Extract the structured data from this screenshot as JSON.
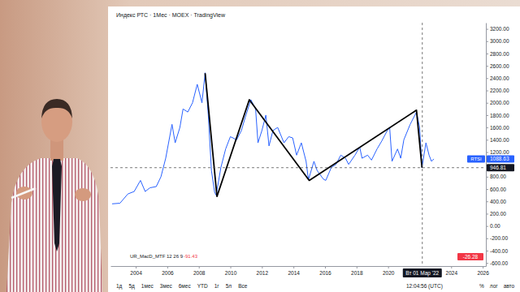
{
  "chart_data": {
    "type": "line",
    "title": "Индекс РТС · 1Мес · MOEX · TradingView",
    "x": [
      2002.5,
      2003.0,
      2003.5,
      2003.9,
      2004.3,
      2004.6,
      2004.9,
      2005.3,
      2005.6,
      2005.9,
      2006.3,
      2006.5,
      2006.8,
      2007.0,
      2007.3,
      2007.6,
      2007.9,
      2008.2,
      2008.4,
      2008.6,
      2008.8,
      2009.0,
      2009.1,
      2009.4,
      2009.7,
      2010.0,
      2010.4,
      2010.7,
      2010.95,
      2011.3,
      2011.6,
      2011.75,
      2012.0,
      2012.25,
      2012.45,
      2012.7,
      2013.0,
      2013.4,
      2013.7,
      2013.95,
      2014.2,
      2014.5,
      2014.8,
      2014.95,
      2015.3,
      2015.5,
      2015.9,
      2016.05,
      2016.4,
      2016.7,
      2017.0,
      2017.3,
      2017.5,
      2017.9,
      2018.2,
      2018.35,
      2018.7,
      2018.95,
      2019.3,
      2019.6,
      2019.95,
      2020.1,
      2020.25,
      2020.6,
      2020.8,
      2021.0,
      2021.4,
      2021.8,
      2022.0,
      2022.15,
      2022.4,
      2022.6,
      2022.75,
      2022.9
    ],
    "series": [
      {
        "color": "#2962ff",
        "values": [
          360,
          370,
          520,
          560,
          740,
          560,
          620,
          640,
          800,
          1100,
          1650,
          1350,
          1600,
          1900,
          1850,
          2000,
          2300,
          2000,
          2487,
          1800,
          900,
          550,
          500,
          950,
          1250,
          1450,
          1400,
          1550,
          1770,
          2050,
          1900,
          1350,
          1550,
          1800,
          1300,
          1550,
          1600,
          1350,
          1450,
          1430,
          1150,
          1350,
          1050,
          750,
          1050,
          900,
          760,
          740,
          950,
          1000,
          1150,
          1100,
          1000,
          1150,
          1280,
          1100,
          1150,
          1070,
          1250,
          1380,
          1550,
          1600,
          1050,
          1250,
          1100,
          1400,
          1650,
          1850,
          1600,
          950,
          1350,
          1150,
          1050,
          1088.63
        ]
      },
      {
        "color": "#000000",
        "x": [
          2008.4,
          2009.15,
          2011.2,
          2015.0,
          2021.8,
          2022.15
        ],
        "values": [
          2480,
          480,
          2050,
          740,
          1880,
          946.81
        ]
      }
    ],
    "xlim": [
      2002.4,
      2026.2
    ],
    "xticks": [
      2004,
      2006,
      2008,
      2010,
      2012,
      2014,
      2016,
      2018,
      2020,
      2024,
      2026
    ],
    "ylim": [
      -650,
      3300
    ],
    "yticks": [
      {
        "value": -600,
        "label": "-600.00"
      },
      {
        "value": -400,
        "label": "-400.00"
      },
      {
        "value": -200,
        "label": "-200.00"
      },
      {
        "value": 0,
        "label": "0.00"
      },
      {
        "value": 200,
        "label": "200.00"
      },
      {
        "value": 400,
        "label": "400.00"
      },
      {
        "value": 600,
        "label": "600.00"
      },
      {
        "value": 800,
        "label": "800.00"
      },
      {
        "value": 1200,
        "label": "1200.00"
      },
      {
        "value": 1400,
        "label": "1400.00"
      },
      {
        "value": 1600,
        "label": "1600.00"
      },
      {
        "value": 1800,
        "label": "1800.00"
      },
      {
        "value": 2000,
        "label": "2000.00"
      },
      {
        "value": 2200,
        "label": "2200.00"
      },
      {
        "value": 2400,
        "label": "2400.00"
      },
      {
        "value": 2600,
        "label": "2600.00"
      },
      {
        "value": 2800,
        "label": "2800.00"
      },
      {
        "value": 3000,
        "label": "3000.00"
      },
      {
        "value": 3200,
        "label": "3200.00"
      }
    ],
    "grid": false,
    "crosshair": {
      "x": 2022.17,
      "x_label": "Вт 01 Мар '22",
      "y": 946.81
    },
    "last_price": {
      "name": "RTSI",
      "value": 1088.63
    },
    "indicator": {
      "name": "UR_MacD_MTF 12 26 9",
      "value": -91.43,
      "last": -26.28
    }
  },
  "toolbar": {
    "items": [
      "1д",
      "5д",
      "1мес",
      "3мес",
      "6мес",
      "YTD",
      "1г",
      "5л",
      "Все"
    ],
    "time": "12:04:56 (UTC)",
    "right": [
      "%",
      "лог",
      "авто"
    ]
  }
}
